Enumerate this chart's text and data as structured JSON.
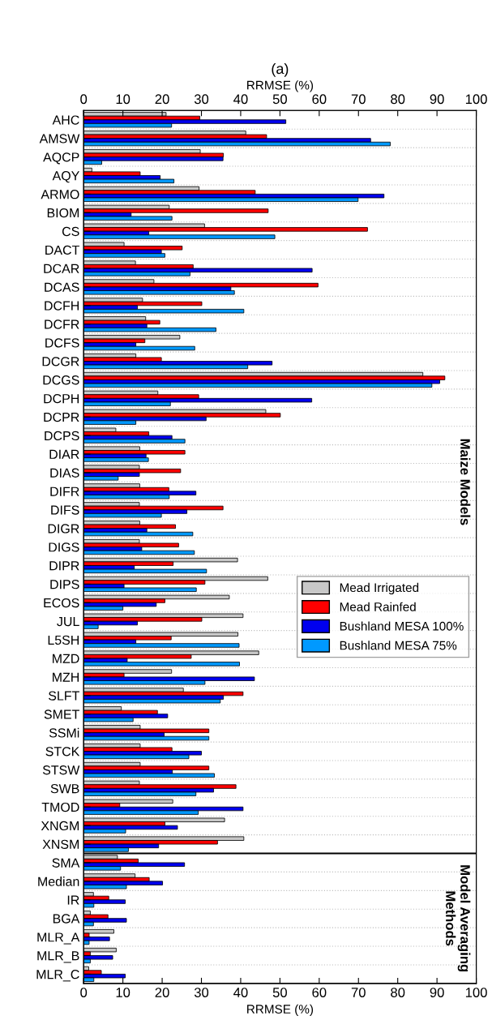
{
  "chart_data": {
    "type": "bar",
    "orientation": "horizontal",
    "title": "(a)",
    "xlabel": "RRMSE (%)",
    "x2label": "RRMSE (%)",
    "categories": [
      "AHC",
      "AMSW",
      "AQCP",
      "AQY",
      "ARMO",
      "BIOM",
      "CS",
      "DACT",
      "DCAR",
      "DCAS",
      "DCFH",
      "DCFR",
      "DCFS",
      "DCGR",
      "DCGS",
      "DCPH",
      "DCPR",
      "DCPS",
      "DIAR",
      "DIAS",
      "DIFR",
      "DIFS",
      "DIGR",
      "DIGS",
      "DIPR",
      "DIPS",
      "ECOS",
      "JUL",
      "L5SH",
      "MZD",
      "MZH",
      "SLFT",
      "SMET",
      "SSMi",
      "STCK",
      "STSW",
      "SWB",
      "TMOD",
      "XNGM",
      "XNSM",
      "SMA",
      "Median",
      "IR",
      "BGA",
      "MLR_A",
      "MLR_B",
      "MLR_C"
    ],
    "series": [
      {
        "name": "Mead Irrigated",
        "color": "#c8c8c8",
        "values": [
          21,
          41.3,
          29.7,
          2.1,
          29.4,
          21.8,
          30.8,
          10.3,
          13.2,
          17.9,
          15.0,
          15.8,
          24.5,
          13.3,
          86.4,
          18.9,
          46.4,
          8.2,
          14.3,
          14.2,
          14.3,
          14.2,
          14.3,
          14.2,
          39.2,
          46.9,
          37.1,
          40.6,
          39.3,
          44.6,
          22.4,
          25.4,
          9.6,
          14.4,
          14.4,
          14.4,
          14.2,
          22.7,
          35.9,
          40.8,
          8.6,
          13.1,
          2.5,
          1.7,
          7.7,
          8.3,
          1.3
        ]
      },
      {
        "name": "Mead Rainfed",
        "color": "#ff0000",
        "values": [
          29.6,
          46.6,
          35.6,
          14.4,
          43.7,
          47.0,
          72.3,
          25.1,
          27.9,
          59.7,
          30.1,
          19.4,
          15.6,
          19.8,
          92.0,
          29.3,
          50.1,
          16.6,
          25.8,
          24.7,
          21.7,
          35.5,
          23.4,
          24.2,
          22.8,
          30.9,
          20.7,
          30.1,
          22.3,
          27.4,
          10.3,
          40.6,
          18.8,
          31.9,
          22.5,
          31.9,
          38.8,
          9.2,
          20.7,
          34.1,
          13.9,
          16.7,
          6.4,
          6.2,
          1.4,
          1.7,
          4.5
        ]
      },
      {
        "name": "Bushland MESA 100%",
        "color": "#0000ee",
        "values": [
          51.5,
          73.1,
          35.5,
          19.5,
          76.5,
          12.1,
          16.6,
          19.8,
          58.2,
          37.5,
          13.7,
          16.1,
          13.3,
          48.0,
          90.7,
          58.1,
          31.2,
          22.5,
          15.9,
          14.2,
          28.6,
          26.3,
          16.1,
          14.8,
          12.9,
          10.3,
          18.5,
          13.7,
          13.3,
          11.1,
          43.5,
          35.6,
          21.4,
          20.5,
          30.0,
          22.6,
          33.1,
          40.6,
          23.9,
          19.1,
          25.7,
          20.1,
          10.6,
          10.9,
          6.6,
          7.4,
          10.6
        ]
      },
      {
        "name": "Bushland MESA 75%",
        "color": "#0099ff",
        "values": [
          22.4,
          78.1,
          4.6,
          23.0,
          69.9,
          22.5,
          48.7,
          20.7,
          27.1,
          38.4,
          40.8,
          33.7,
          28.3,
          41.8,
          88.7,
          22.1,
          13.3,
          25.8,
          16.5,
          8.8,
          21.8,
          19.8,
          27.8,
          28.2,
          31.3,
          28.7,
          10.0,
          3.7,
          39.6,
          39.7,
          30.9,
          34.8,
          12.6,
          31.9,
          26.8,
          33.3,
          28.6,
          29.2,
          10.7,
          11.4,
          9.4,
          10.9,
          2.6,
          2.5,
          1.4,
          1.7,
          2.6
        ]
      }
    ],
    "xlim": [
      0,
      100
    ],
    "xticks": [
      0,
      10,
      20,
      30,
      40,
      50,
      60,
      70,
      80,
      90,
      100
    ],
    "x2lim": [
      0,
      100
    ],
    "x2ticks": [
      0,
      10,
      20,
      30,
      40,
      50,
      60,
      70,
      80,
      90,
      100
    ],
    "annotations": [
      "Maize Models",
      "Model Averaging\nMethods"
    ],
    "ref_lines": [
      {
        "axis": "y",
        "value": "XNSM",
        "color": "#000000",
        "line_style": "solid"
      }
    ],
    "grid": "y",
    "legend": "right"
  }
}
